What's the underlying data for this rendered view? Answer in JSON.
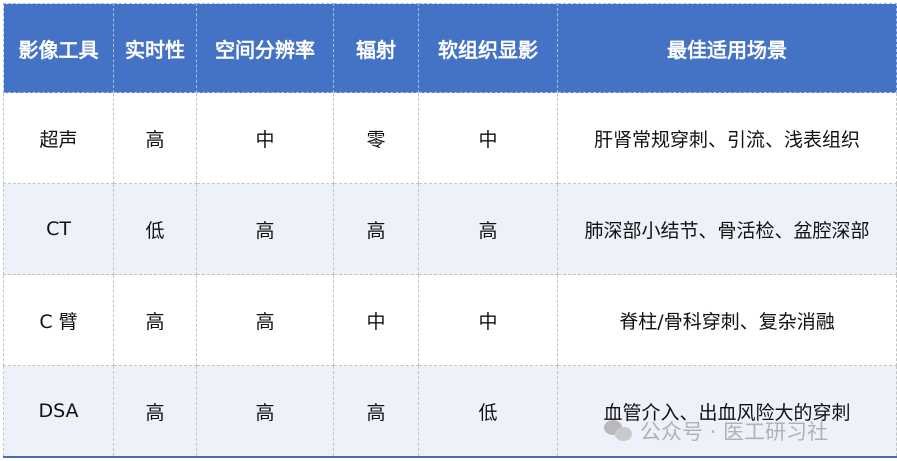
{
  "table": {
    "headers": [
      "影像工具",
      "实时性",
      "空间分辨率",
      "辐射",
      "软组织显影",
      "最佳适用场景"
    ],
    "rows": [
      [
        "超声",
        "高",
        "中",
        "零",
        "中",
        "肝肾常规穿刺、引流、浅表组织"
      ],
      [
        "CT",
        "低",
        "高",
        "高",
        "高",
        "肺深部小结节、骨活检、盆腔深部"
      ],
      [
        "C 臂",
        "高",
        "高",
        "中",
        "中",
        "脊柱/骨科穿刺、复杂消融"
      ],
      [
        "DSA",
        "高",
        "高",
        "高",
        "低",
        "血管介入、出血风险大的穿刺"
      ]
    ]
  },
  "watermark": {
    "text": "公众号 · 医工研习社",
    "icon": "wechat-icon"
  },
  "colors": {
    "header_bg": "#4472c4",
    "alt_row_bg": "#edf1f9"
  }
}
